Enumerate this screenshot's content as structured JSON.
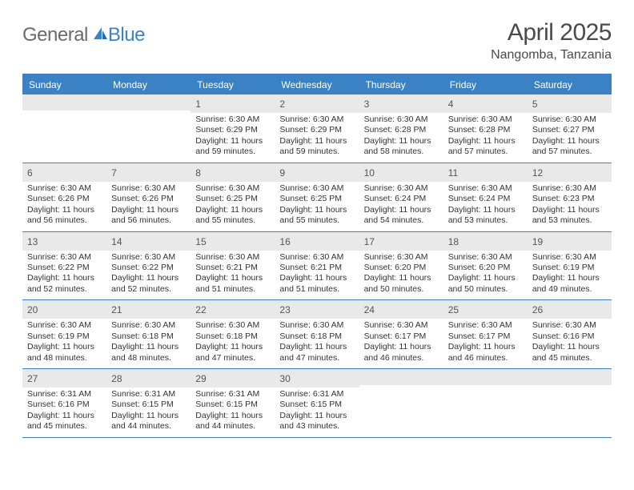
{
  "logo": {
    "text1": "General",
    "text2": "Blue"
  },
  "title": "April 2025",
  "location": "Nangomba, Tanzania",
  "colors": {
    "header_bg": "#3b82c4",
    "header_text": "#ffffff",
    "daynum_bg": "#e9e9e9",
    "body_text": "#333333",
    "logo_gray": "#6b6b6b",
    "logo_blue": "#3b82c4"
  },
  "daysOfWeek": [
    "Sunday",
    "Monday",
    "Tuesday",
    "Wednesday",
    "Thursday",
    "Friday",
    "Saturday"
  ],
  "weeks": [
    [
      null,
      null,
      {
        "n": "1",
        "sr": "6:30 AM",
        "ss": "6:29 PM",
        "dl": "11 hours and 59 minutes."
      },
      {
        "n": "2",
        "sr": "6:30 AM",
        "ss": "6:29 PM",
        "dl": "11 hours and 59 minutes."
      },
      {
        "n": "3",
        "sr": "6:30 AM",
        "ss": "6:28 PM",
        "dl": "11 hours and 58 minutes."
      },
      {
        "n": "4",
        "sr": "6:30 AM",
        "ss": "6:28 PM",
        "dl": "11 hours and 57 minutes."
      },
      {
        "n": "5",
        "sr": "6:30 AM",
        "ss": "6:27 PM",
        "dl": "11 hours and 57 minutes."
      }
    ],
    [
      {
        "n": "6",
        "sr": "6:30 AM",
        "ss": "6:26 PM",
        "dl": "11 hours and 56 minutes."
      },
      {
        "n": "7",
        "sr": "6:30 AM",
        "ss": "6:26 PM",
        "dl": "11 hours and 56 minutes."
      },
      {
        "n": "8",
        "sr": "6:30 AM",
        "ss": "6:25 PM",
        "dl": "11 hours and 55 minutes."
      },
      {
        "n": "9",
        "sr": "6:30 AM",
        "ss": "6:25 PM",
        "dl": "11 hours and 55 minutes."
      },
      {
        "n": "10",
        "sr": "6:30 AM",
        "ss": "6:24 PM",
        "dl": "11 hours and 54 minutes."
      },
      {
        "n": "11",
        "sr": "6:30 AM",
        "ss": "6:24 PM",
        "dl": "11 hours and 53 minutes."
      },
      {
        "n": "12",
        "sr": "6:30 AM",
        "ss": "6:23 PM",
        "dl": "11 hours and 53 minutes."
      }
    ],
    [
      {
        "n": "13",
        "sr": "6:30 AM",
        "ss": "6:22 PM",
        "dl": "11 hours and 52 minutes."
      },
      {
        "n": "14",
        "sr": "6:30 AM",
        "ss": "6:22 PM",
        "dl": "11 hours and 52 minutes."
      },
      {
        "n": "15",
        "sr": "6:30 AM",
        "ss": "6:21 PM",
        "dl": "11 hours and 51 minutes."
      },
      {
        "n": "16",
        "sr": "6:30 AM",
        "ss": "6:21 PM",
        "dl": "11 hours and 51 minutes."
      },
      {
        "n": "17",
        "sr": "6:30 AM",
        "ss": "6:20 PM",
        "dl": "11 hours and 50 minutes."
      },
      {
        "n": "18",
        "sr": "6:30 AM",
        "ss": "6:20 PM",
        "dl": "11 hours and 50 minutes."
      },
      {
        "n": "19",
        "sr": "6:30 AM",
        "ss": "6:19 PM",
        "dl": "11 hours and 49 minutes."
      }
    ],
    [
      {
        "n": "20",
        "sr": "6:30 AM",
        "ss": "6:19 PM",
        "dl": "11 hours and 48 minutes."
      },
      {
        "n": "21",
        "sr": "6:30 AM",
        "ss": "6:18 PM",
        "dl": "11 hours and 48 minutes."
      },
      {
        "n": "22",
        "sr": "6:30 AM",
        "ss": "6:18 PM",
        "dl": "11 hours and 47 minutes."
      },
      {
        "n": "23",
        "sr": "6:30 AM",
        "ss": "6:18 PM",
        "dl": "11 hours and 47 minutes."
      },
      {
        "n": "24",
        "sr": "6:30 AM",
        "ss": "6:17 PM",
        "dl": "11 hours and 46 minutes."
      },
      {
        "n": "25",
        "sr": "6:30 AM",
        "ss": "6:17 PM",
        "dl": "11 hours and 46 minutes."
      },
      {
        "n": "26",
        "sr": "6:30 AM",
        "ss": "6:16 PM",
        "dl": "11 hours and 45 minutes."
      }
    ],
    [
      {
        "n": "27",
        "sr": "6:31 AM",
        "ss": "6:16 PM",
        "dl": "11 hours and 45 minutes."
      },
      {
        "n": "28",
        "sr": "6:31 AM",
        "ss": "6:15 PM",
        "dl": "11 hours and 44 minutes."
      },
      {
        "n": "29",
        "sr": "6:31 AM",
        "ss": "6:15 PM",
        "dl": "11 hours and 44 minutes."
      },
      {
        "n": "30",
        "sr": "6:31 AM",
        "ss": "6:15 PM",
        "dl": "11 hours and 43 minutes."
      },
      null,
      null,
      null
    ]
  ],
  "labels": {
    "sunrise": "Sunrise:",
    "sunset": "Sunset:",
    "daylight": "Daylight:"
  }
}
